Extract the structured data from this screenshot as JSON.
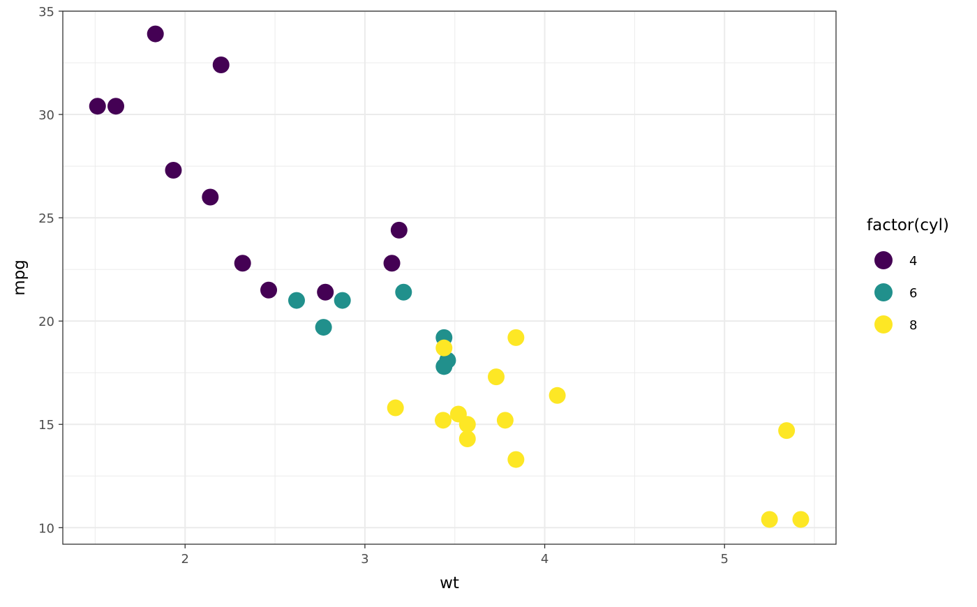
{
  "chart_data": {
    "type": "scatter",
    "title": "",
    "xlabel": "wt",
    "ylabel": "mpg",
    "xlim": [
      1.32,
      5.62
    ],
    "ylim": [
      9.2,
      35
    ],
    "xticks": [
      2,
      3,
      4,
      5
    ],
    "yticks": [
      10,
      15,
      20,
      25,
      30,
      35
    ],
    "xticks_minor": [
      1.5,
      2.5,
      3.5,
      4.5,
      5.5
    ],
    "yticks_minor": [
      12.5,
      17.5,
      22.5,
      27.5,
      32.5
    ],
    "grid": true,
    "legend": {
      "title": "factor(cyl)",
      "position": "right"
    },
    "series": [
      {
        "name": "4",
        "color": "#440154",
        "points": [
          {
            "x": 1.835,
            "y": 33.9
          },
          {
            "x": 2.2,
            "y": 32.4
          },
          {
            "x": 1.513,
            "y": 30.4
          },
          {
            "x": 1.615,
            "y": 30.4
          },
          {
            "x": 1.935,
            "y": 27.3
          },
          {
            "x": 2.14,
            "y": 26.0
          },
          {
            "x": 3.19,
            "y": 24.4
          },
          {
            "x": 2.32,
            "y": 22.8
          },
          {
            "x": 3.15,
            "y": 22.8
          },
          {
            "x": 2.465,
            "y": 21.5
          },
          {
            "x": 2.78,
            "y": 21.4
          }
        ]
      },
      {
        "name": "6",
        "color": "#21908C",
        "points": [
          {
            "x": 2.62,
            "y": 21.0
          },
          {
            "x": 2.875,
            "y": 21.0
          },
          {
            "x": 3.215,
            "y": 21.4
          },
          {
            "x": 2.77,
            "y": 19.7
          },
          {
            "x": 3.44,
            "y": 19.2
          },
          {
            "x": 3.46,
            "y": 18.1
          },
          {
            "x": 3.44,
            "y": 17.8
          }
        ]
      },
      {
        "name": "8",
        "color": "#FDE725",
        "points": [
          {
            "x": 3.44,
            "y": 18.7
          },
          {
            "x": 3.84,
            "y": 19.2
          },
          {
            "x": 3.73,
            "y": 17.3
          },
          {
            "x": 4.07,
            "y": 16.4
          },
          {
            "x": 3.17,
            "y": 15.8
          },
          {
            "x": 3.52,
            "y": 15.5
          },
          {
            "x": 3.435,
            "y": 15.2
          },
          {
            "x": 3.78,
            "y": 15.2
          },
          {
            "x": 3.57,
            "y": 15.0
          },
          {
            "x": 5.345,
            "y": 14.7
          },
          {
            "x": 3.57,
            "y": 14.3
          },
          {
            "x": 3.84,
            "y": 13.3
          },
          {
            "x": 5.25,
            "y": 10.4
          },
          {
            "x": 5.424,
            "y": 10.4
          }
        ]
      }
    ]
  }
}
